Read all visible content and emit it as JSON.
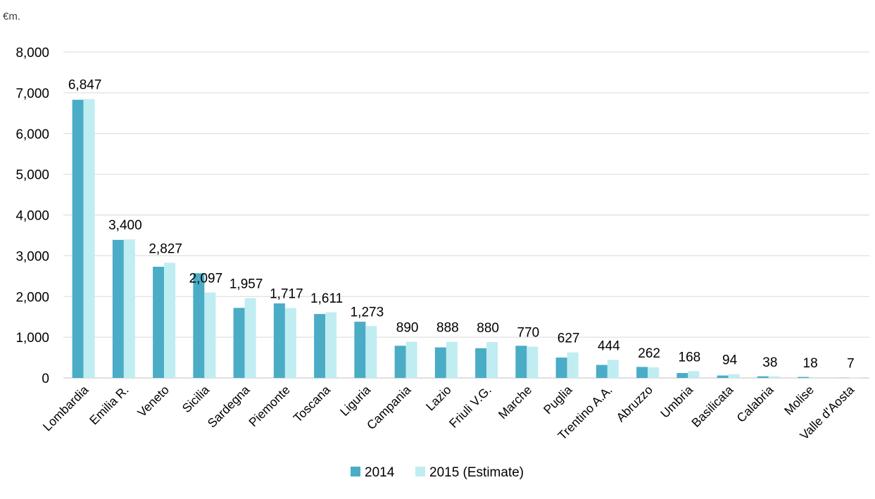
{
  "chart_data": {
    "type": "bar",
    "unit_label": "€m.",
    "categories": [
      "Lombardia",
      "Emilia R.",
      "Veneto",
      "Sicilia",
      "Sardegna",
      "Piemonte",
      "Toscana",
      "Liguria",
      "Campania",
      "Lazio",
      "Friuli V.G.",
      "Marche",
      "Puglia",
      "Trentino A.A.",
      "Abruzzo",
      "Umbria",
      "Basilicata",
      "Calabria",
      "Molise",
      "Valle d'Aosta"
    ],
    "series": [
      {
        "name": "2014",
        "color": "#4BACC6",
        "values": [
          6830,
          3390,
          2730,
          2570,
          1720,
          1830,
          1570,
          1380,
          790,
          750,
          730,
          790,
          500,
          320,
          270,
          120,
          60,
          40,
          25,
          5
        ]
      },
      {
        "name": "2015 (Estimate)",
        "color": "#C0EDF2",
        "values": [
          6847,
          3400,
          2827,
          2097,
          1957,
          1717,
          1611,
          1273,
          890,
          888,
          880,
          770,
          627,
          444,
          262,
          168,
          94,
          38,
          18,
          7
        ]
      }
    ],
    "data_labels": [
      "6,847",
      "3,400",
      "2,827",
      "2,097",
      "1,957",
      "1,717",
      "1,611",
      "1,273",
      "890",
      "888",
      "880",
      "770",
      "627",
      "444",
      "262",
      "168",
      "94",
      "38",
      "18",
      "7"
    ],
    "yticks": [
      "0",
      "1,000",
      "2,000",
      "3,000",
      "4,000",
      "5,000",
      "6,000",
      "7,000",
      "8,000"
    ],
    "ylim": [
      0,
      8000
    ],
    "grid": true,
    "legend_position": "bottom-center",
    "gridline_color": "#D9D9D9"
  }
}
